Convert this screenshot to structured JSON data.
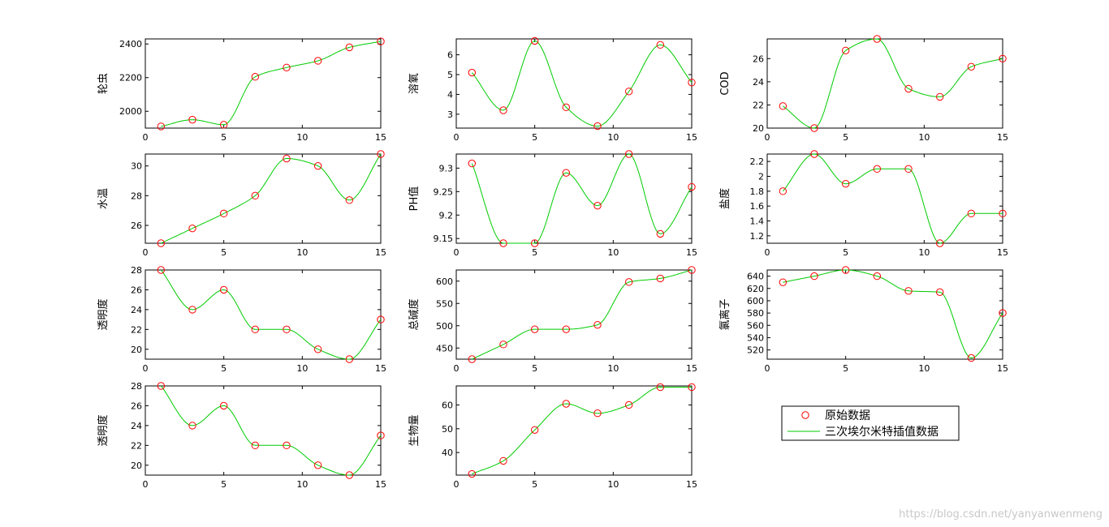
{
  "figure": {
    "watermark": "https://blog.csdn.net/yanyanwenmeng",
    "marker_color": "#ff0000",
    "line_color": "#00cc00"
  },
  "legend": {
    "entries": [
      "原始数据",
      "三次埃尔米特插值数据"
    ]
  },
  "chart_data": [
    {
      "type": "line",
      "ylabel": "轮虫",
      "x": [
        1,
        3,
        5,
        7,
        9,
        11,
        13,
        15
      ],
      "y": [
        1910,
        1950,
        1920,
        2205,
        2260,
        2300,
        2380,
        2415
      ],
      "xlim": [
        0,
        15
      ],
      "ylim": [
        1900,
        2430
      ],
      "xticks": [
        0,
        5,
        10,
        15
      ],
      "yticks": [
        2000,
        2200,
        2400
      ]
    },
    {
      "type": "line",
      "ylabel": "溶氧",
      "x": [
        1,
        3,
        5,
        7,
        9,
        11,
        13,
        15
      ],
      "y": [
        5.1,
        3.2,
        6.7,
        3.35,
        2.4,
        4.15,
        6.5,
        4.6
      ],
      "xlim": [
        0,
        15
      ],
      "ylim": [
        2.3,
        6.8
      ],
      "xticks": [
        0,
        5,
        10,
        15
      ],
      "yticks": [
        3,
        4,
        5,
        6
      ]
    },
    {
      "type": "line",
      "ylabel": "COD",
      "x": [
        1,
        3,
        5,
        7,
        9,
        11,
        13,
        15
      ],
      "y": [
        21.9,
        20,
        26.7,
        27.7,
        23.4,
        22.7,
        25.3,
        26
      ],
      "xlim": [
        0,
        15
      ],
      "ylim": [
        20,
        27.7
      ],
      "xticks": [
        0,
        5,
        10,
        15
      ],
      "yticks": [
        20,
        22,
        24,
        26
      ]
    },
    {
      "type": "line",
      "ylabel": "水温",
      "x": [
        1,
        3,
        5,
        7,
        9,
        11,
        13,
        15
      ],
      "y": [
        24.8,
        25.8,
        26.8,
        28,
        30.5,
        30,
        27.7,
        30.8
      ],
      "xlim": [
        0,
        15
      ],
      "ylim": [
        24.8,
        30.8
      ],
      "xticks": [
        0,
        5,
        10,
        15
      ],
      "yticks": [
        26,
        28,
        30
      ]
    },
    {
      "type": "line",
      "ylabel": "PH值",
      "x": [
        1,
        3,
        5,
        7,
        9,
        11,
        13,
        15
      ],
      "y": [
        9.31,
        9.14,
        9.14,
        9.29,
        9.22,
        9.33,
        9.16,
        9.26
      ],
      "xlim": [
        0,
        15
      ],
      "ylim": [
        9.14,
        9.33
      ],
      "xticks": [
        0,
        5,
        10,
        15
      ],
      "yticks": [
        9.15,
        9.2,
        9.25,
        9.3
      ]
    },
    {
      "type": "line",
      "ylabel": "盐度",
      "x": [
        1,
        3,
        5,
        7,
        9,
        11,
        13,
        15
      ],
      "y": [
        1.8,
        2.3,
        1.9,
        2.1,
        2.1,
        1.1,
        1.5,
        1.5
      ],
      "xlim": [
        0,
        15
      ],
      "ylim": [
        1.1,
        2.3
      ],
      "xticks": [
        0,
        5,
        10,
        15
      ],
      "yticks": [
        1.2,
        1.4,
        1.6,
        1.8,
        2,
        2.2
      ]
    },
    {
      "type": "line",
      "ylabel": "透明度",
      "x": [
        1,
        3,
        5,
        7,
        9,
        11,
        13,
        15
      ],
      "y": [
        28,
        24,
        26,
        22,
        22,
        20,
        19,
        23
      ],
      "xlim": [
        0,
        15
      ],
      "ylim": [
        19,
        28
      ],
      "xticks": [
        0,
        5,
        10,
        15
      ],
      "yticks": [
        20,
        22,
        24,
        26,
        28
      ]
    },
    {
      "type": "line",
      "ylabel": "总碱度",
      "x": [
        1,
        3,
        5,
        7,
        9,
        11,
        13,
        15
      ],
      "y": [
        425,
        458,
        492,
        492,
        502,
        598,
        606,
        625
      ],
      "xlim": [
        0,
        15
      ],
      "ylim": [
        425,
        625
      ],
      "xticks": [
        0,
        5,
        10,
        15
      ],
      "yticks": [
        450,
        500,
        550,
        600
      ]
    },
    {
      "type": "line",
      "ylabel": "氯离子",
      "x": [
        1,
        3,
        5,
        7,
        9,
        11,
        13,
        15
      ],
      "y": [
        630,
        640,
        650,
        640,
        616,
        614,
        507,
        580
      ],
      "xlim": [
        0,
        15
      ],
      "ylim": [
        505,
        650
      ],
      "xticks": [
        0,
        5,
        10,
        15
      ],
      "yticks": [
        520,
        540,
        560,
        580,
        600,
        620,
        640
      ]
    },
    {
      "type": "line",
      "ylabel": "透明度",
      "x": [
        1,
        3,
        5,
        7,
        9,
        11,
        13,
        15
      ],
      "y": [
        28,
        24,
        26,
        22,
        22,
        20,
        19,
        23
      ],
      "xlim": [
        0,
        15
      ],
      "ylim": [
        19,
        28
      ],
      "xticks": [
        0,
        5,
        10,
        15
      ],
      "yticks": [
        20,
        22,
        24,
        26,
        28
      ]
    },
    {
      "type": "line",
      "ylabel": "生物量",
      "x": [
        1,
        3,
        5,
        7,
        9,
        11,
        13,
        15
      ],
      "y": [
        31,
        36.5,
        49.5,
        60.5,
        56.5,
        60,
        67.5,
        67.5
      ],
      "xlim": [
        0,
        15
      ],
      "ylim": [
        30.5,
        68
      ],
      "xticks": [
        0,
        5,
        10,
        15
      ],
      "yticks": [
        40,
        50,
        60
      ]
    }
  ]
}
